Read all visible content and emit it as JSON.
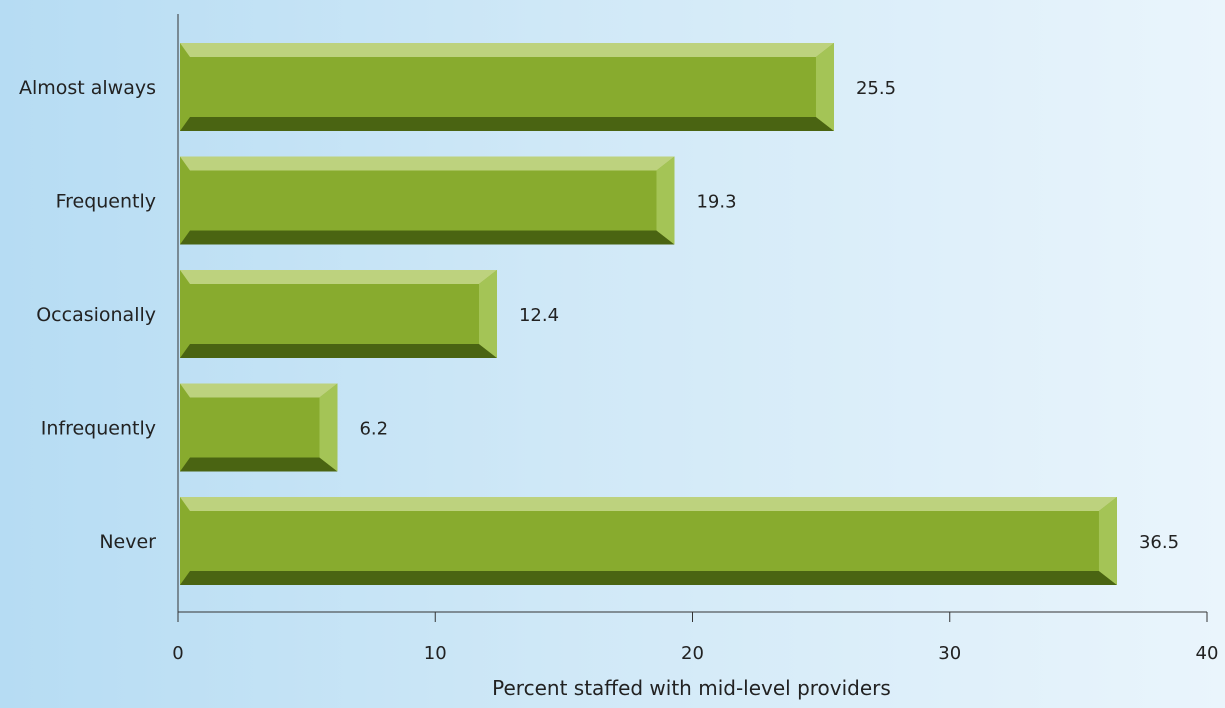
{
  "chart_data": {
    "type": "bar",
    "orientation": "horizontal",
    "categories": [
      "Almost always",
      "Frequently",
      "Occasionally",
      "Infrequently",
      "Never"
    ],
    "values": [
      25.5,
      19.3,
      12.4,
      6.2,
      36.5
    ],
    "value_labels": [
      "25.5",
      "19.3",
      "12.4",
      "6.2",
      "36.5"
    ],
    "xlabel": "Percent staffed with mid-level providers",
    "ylabel": "",
    "xlim": [
      0,
      40
    ],
    "x_ticks": [
      0,
      10,
      20,
      30,
      40
    ],
    "x_tick_labels": [
      "0",
      "10",
      "20",
      "30",
      "40"
    ],
    "grid": false,
    "colors": {
      "bar_face": "#88ab2e",
      "bar_top": "#bdd27e",
      "bar_bottom": "#4a6412",
      "bar_end": "#a4c456",
      "axis": "#333333"
    }
  }
}
